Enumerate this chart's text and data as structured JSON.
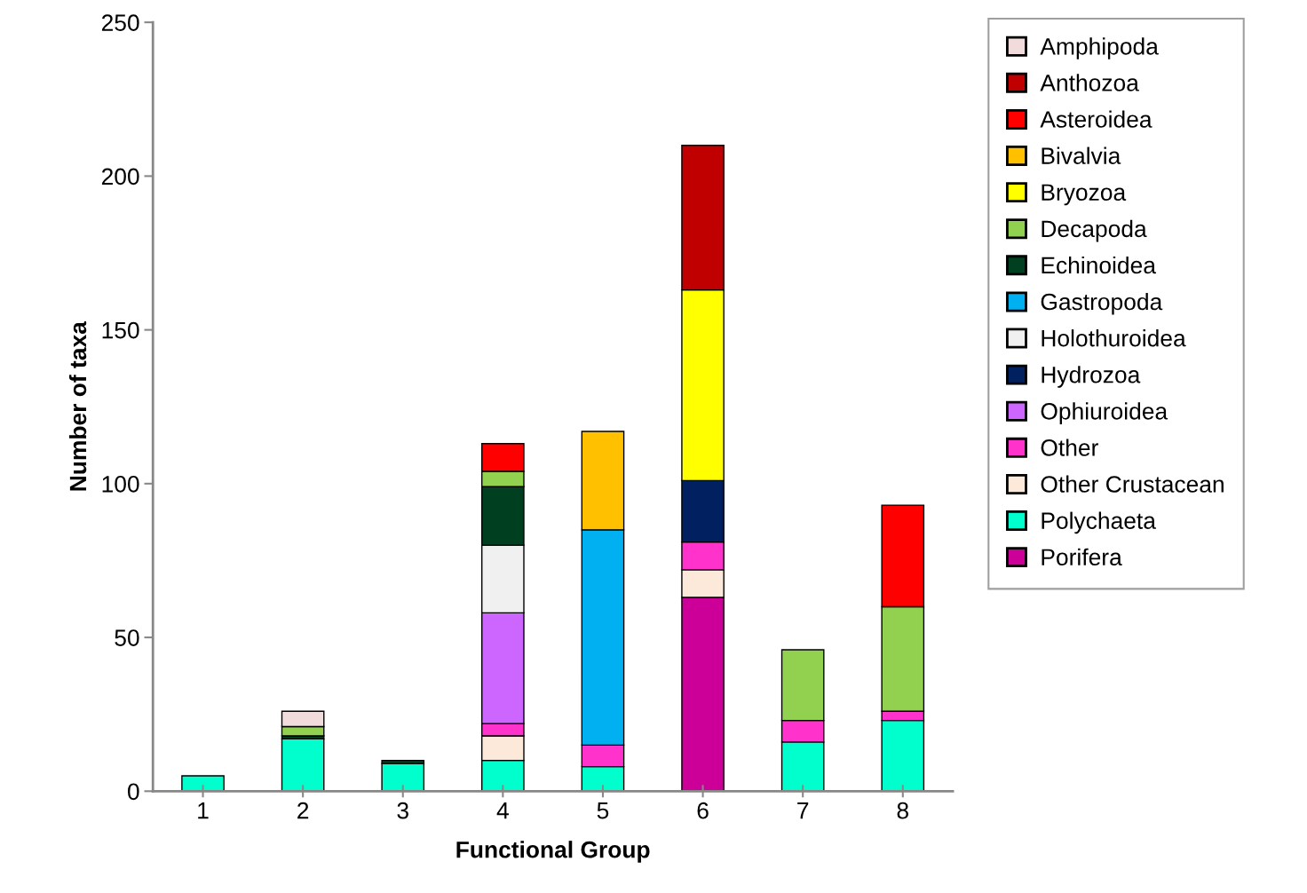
{
  "chart_data": {
    "type": "bar",
    "stacked": true,
    "xlabel": "Functional Group",
    "ylabel": "Number of taxa",
    "categories": [
      "1",
      "2",
      "3",
      "4",
      "5",
      "6",
      "7",
      "8"
    ],
    "ylim": [
      0,
      250
    ],
    "yticks": [
      0,
      50,
      100,
      150,
      200,
      250
    ],
    "grid": false,
    "legend": "right",
    "series": [
      {
        "name": "Porifera",
        "color": "#cc0099",
        "values": [
          null,
          null,
          null,
          null,
          null,
          63,
          null,
          null
        ]
      },
      {
        "name": "Polychaeta",
        "color": "#00ffcc",
        "values": [
          5,
          17,
          9,
          10,
          8,
          null,
          16,
          23
        ]
      },
      {
        "name": "Other Crustacean",
        "color": "#fde9d9",
        "values": [
          null,
          null,
          null,
          8,
          null,
          9,
          null,
          null
        ]
      },
      {
        "name": "Other",
        "color": "#ff33cc",
        "values": [
          null,
          null,
          null,
          4,
          7,
          9,
          7,
          3
        ]
      },
      {
        "name": "Ophiuroidea",
        "color": "#cc66ff",
        "values": [
          null,
          null,
          null,
          36,
          null,
          null,
          null,
          null
        ]
      },
      {
        "name": "Hydrozoa",
        "color": "#002060",
        "values": [
          null,
          null,
          null,
          null,
          null,
          20,
          null,
          null
        ]
      },
      {
        "name": "Holothuroidea",
        "color": "#f0f0f0",
        "values": [
          null,
          null,
          null,
          22,
          null,
          null,
          null,
          null
        ]
      },
      {
        "name": "Gastropoda",
        "color": "#00b0f0",
        "values": [
          null,
          null,
          null,
          null,
          70,
          null,
          null,
          null
        ]
      },
      {
        "name": "Echinoidea",
        "color": "#003f1f",
        "values": [
          null,
          1,
          1,
          19,
          null,
          null,
          null,
          null
        ]
      },
      {
        "name": "Decapoda",
        "color": "#92d050",
        "values": [
          null,
          3,
          null,
          5,
          null,
          null,
          23,
          34
        ]
      },
      {
        "name": "Bryozoa",
        "color": "#ffff00",
        "values": [
          null,
          null,
          null,
          null,
          null,
          62,
          null,
          null
        ]
      },
      {
        "name": "Bivalvia",
        "color": "#ffc000",
        "values": [
          null,
          null,
          null,
          null,
          32,
          null,
          null,
          null
        ]
      },
      {
        "name": "Asteroidea",
        "color": "#ff0000",
        "values": [
          null,
          null,
          null,
          9,
          null,
          null,
          null,
          33
        ]
      },
      {
        "name": "Anthozoa",
        "color": "#c00000",
        "values": [
          null,
          null,
          null,
          null,
          null,
          47,
          null,
          null
        ]
      },
      {
        "name": "Amphipoda",
        "color": "#f2dcdb",
        "values": [
          null,
          5,
          null,
          null,
          null,
          null,
          null,
          null
        ]
      }
    ]
  }
}
